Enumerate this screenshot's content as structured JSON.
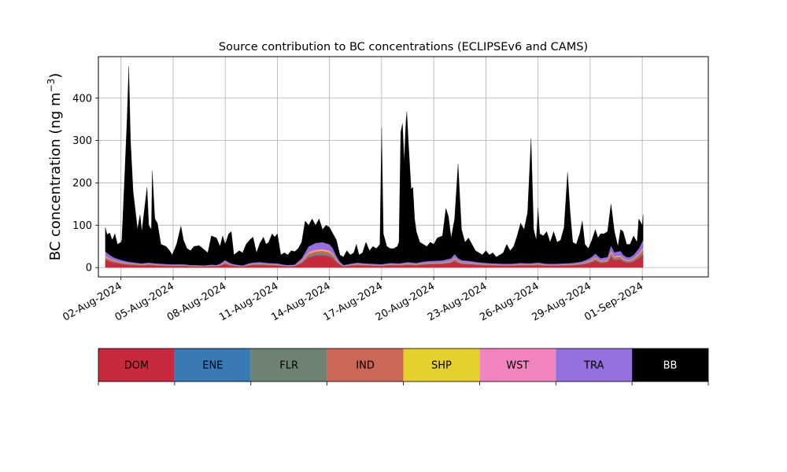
{
  "chart_data": {
    "type": "area",
    "stacked": true,
    "title": "Source contribution to BC concentrations (ECLIPSEv6 and CAMS)",
    "xlabel": "",
    "ylabel": "BC concentration (ng m",
    "ylabel_sup": "−3",
    "ylabel_close": ")",
    "ylim": [
      -22,
      498
    ],
    "yticks": [
      0,
      100,
      200,
      300,
      400
    ],
    "xlim_days": [
      -1.3,
      33.8
    ],
    "xtick_days": [
      0,
      3,
      6,
      9,
      12,
      15,
      18,
      21,
      24,
      27,
      30
    ],
    "xtick_labels": [
      "02-Aug-2024",
      "05-Aug-2024",
      "08-Aug-2024",
      "11-Aug-2024",
      "14-Aug-2024",
      "17-Aug-2024",
      "20-Aug-2024",
      "23-Aug-2024",
      "26-Aug-2024",
      "29-Aug-2024",
      "01-Sep-2024"
    ],
    "grid": true,
    "series": [
      {
        "name": "DOM",
        "color": "#c62a3c",
        "text_color": "#000000"
      },
      {
        "name": "ENE",
        "color": "#3a7ab4",
        "text_color": "#000000"
      },
      {
        "name": "FLR",
        "color": "#6e8271",
        "text_color": "#000000"
      },
      {
        "name": "IND",
        "color": "#cb6756",
        "text_color": "#000000"
      },
      {
        "name": "SHP",
        "color": "#e6d02f",
        "text_color": "#000000"
      },
      {
        "name": "WST",
        "color": "#f284bf",
        "text_color": "#000000"
      },
      {
        "name": "TRA",
        "color": "#9370db",
        "text_color": "#000000"
      },
      {
        "name": "BB",
        "color": "#000000",
        "text_color": "#ffffff"
      }
    ],
    "total_points": [
      [
        -0.9,
        95
      ],
      [
        -0.8,
        78
      ],
      [
        -0.65,
        82
      ],
      [
        -0.5,
        65
      ],
      [
        -0.35,
        80
      ],
      [
        -0.2,
        55
      ],
      [
        0.0,
        60
      ],
      [
        0.05,
        65
      ],
      [
        0.2,
        205
      ],
      [
        0.35,
        350
      ],
      [
        0.45,
        475
      ],
      [
        0.55,
        300
      ],
      [
        0.7,
        180
      ],
      [
        0.8,
        145
      ],
      [
        0.95,
        90
      ],
      [
        1.1,
        125
      ],
      [
        1.2,
        85
      ],
      [
        1.5,
        190
      ],
      [
        1.6,
        100
      ],
      [
        1.75,
        90
      ],
      [
        1.8,
        228
      ],
      [
        1.95,
        115
      ],
      [
        2.1,
        105
      ],
      [
        2.3,
        55
      ],
      [
        2.6,
        50
      ],
      [
        2.8,
        40
      ],
      [
        2.95,
        30
      ],
      [
        3.2,
        55
      ],
      [
        3.45,
        98
      ],
      [
        3.6,
        65
      ],
      [
        3.8,
        45
      ],
      [
        4.0,
        40
      ],
      [
        4.2,
        50
      ],
      [
        4.5,
        52
      ],
      [
        4.8,
        42
      ],
      [
        5.0,
        35
      ],
      [
        5.2,
        75
      ],
      [
        5.5,
        70
      ],
      [
        5.7,
        50
      ],
      [
        5.85,
        75
      ],
      [
        6.0,
        55
      ],
      [
        6.2,
        80
      ],
      [
        6.35,
        85
      ],
      [
        6.5,
        30
      ],
      [
        6.8,
        40
      ],
      [
        7.0,
        35
      ],
      [
        7.2,
        55
      ],
      [
        7.4,
        65
      ],
      [
        7.6,
        72
      ],
      [
        7.8,
        35
      ],
      [
        8.0,
        58
      ],
      [
        8.2,
        72
      ],
      [
        8.35,
        55
      ],
      [
        8.5,
        60
      ],
      [
        8.7,
        80
      ],
      [
        8.85,
        72
      ],
      [
        9.0,
        80
      ],
      [
        9.2,
        30
      ],
      [
        9.4,
        35
      ],
      [
        9.6,
        30
      ],
      [
        9.8,
        40
      ],
      [
        10.0,
        38
      ],
      [
        10.2,
        45
      ],
      [
        10.4,
        60
      ],
      [
        10.6,
        110
      ],
      [
        10.8,
        100
      ],
      [
        11.0,
        115
      ],
      [
        11.2,
        100
      ],
      [
        11.4,
        115
      ],
      [
        11.6,
        90
      ],
      [
        11.8,
        100
      ],
      [
        12.0,
        95
      ],
      [
        12.2,
        80
      ],
      [
        12.4,
        65
      ],
      [
        12.6,
        30
      ],
      [
        12.8,
        25
      ],
      [
        13.0,
        40
      ],
      [
        13.2,
        30
      ],
      [
        13.4,
        35
      ],
      [
        13.55,
        55
      ],
      [
        13.7,
        30
      ],
      [
        13.9,
        35
      ],
      [
        14.1,
        60
      ],
      [
        14.3,
        40
      ],
      [
        14.5,
        50
      ],
      [
        14.7,
        45
      ],
      [
        14.9,
        55
      ],
      [
        15.0,
        330
      ],
      [
        15.1,
        80
      ],
      [
        15.3,
        50
      ],
      [
        15.5,
        45
      ],
      [
        15.7,
        45
      ],
      [
        15.9,
        50
      ],
      [
        16.0,
        60
      ],
      [
        16.1,
        320
      ],
      [
        16.2,
        340
      ],
      [
        16.3,
        250
      ],
      [
        16.4,
        345
      ],
      [
        16.45,
        368
      ],
      [
        16.55,
        290
      ],
      [
        16.7,
        185
      ],
      [
        16.8,
        190
      ],
      [
        16.9,
        115
      ],
      [
        17.0,
        85
      ],
      [
        17.2,
        60
      ],
      [
        17.4,
        55
      ],
      [
        17.6,
        50
      ],
      [
        17.8,
        60
      ],
      [
        18.0,
        55
      ],
      [
        18.2,
        70
      ],
      [
        18.5,
        75
      ],
      [
        18.7,
        140
      ],
      [
        18.85,
        120
      ],
      [
        19.0,
        70
      ],
      [
        19.2,
        115
      ],
      [
        19.4,
        245
      ],
      [
        19.6,
        90
      ],
      [
        19.8,
        60
      ],
      [
        20.0,
        70
      ],
      [
        20.2,
        55
      ],
      [
        20.4,
        40
      ],
      [
        20.6,
        35
      ],
      [
        20.8,
        30
      ],
      [
        21.0,
        40
      ],
      [
        21.2,
        30
      ],
      [
        21.4,
        35
      ],
      [
        21.6,
        25
      ],
      [
        21.8,
        30
      ],
      [
        22.0,
        35
      ],
      [
        22.2,
        55
      ],
      [
        22.4,
        40
      ],
      [
        22.6,
        50
      ],
      [
        22.8,
        75
      ],
      [
        23.0,
        105
      ],
      [
        23.2,
        90
      ],
      [
        23.4,
        130
      ],
      [
        23.6,
        305
      ],
      [
        23.75,
        90
      ],
      [
        23.9,
        65
      ],
      [
        24.0,
        140
      ],
      [
        24.1,
        80
      ],
      [
        24.3,
        75
      ],
      [
        24.5,
        85
      ],
      [
        24.7,
        60
      ],
      [
        24.9,
        85
      ],
      [
        25.1,
        60
      ],
      [
        25.3,
        65
      ],
      [
        25.5,
        95
      ],
      [
        25.7,
        225
      ],
      [
        25.85,
        130
      ],
      [
        26.0,
        60
      ],
      [
        26.2,
        55
      ],
      [
        26.4,
        80
      ],
      [
        26.55,
        110
      ],
      [
        26.7,
        55
      ],
      [
        26.9,
        45
      ],
      [
        27.1,
        65
      ],
      [
        27.3,
        90
      ],
      [
        27.45,
        70
      ],
      [
        27.6,
        80
      ],
      [
        27.8,
        80
      ],
      [
        28.0,
        85
      ],
      [
        28.2,
        150
      ],
      [
        28.4,
        85
      ],
      [
        28.6,
        50
      ],
      [
        28.75,
        90
      ],
      [
        28.9,
        85
      ],
      [
        29.1,
        55
      ],
      [
        29.3,
        55
      ],
      [
        29.5,
        75
      ],
      [
        29.7,
        60
      ],
      [
        29.8,
        115
      ],
      [
        30.0,
        100
      ],
      [
        30.05,
        125
      ]
    ],
    "stack_points": [
      [
        -0.9,
        38
      ],
      [
        -0.6,
        28
      ],
      [
        -0.3,
        22
      ],
      [
        0.0,
        18
      ],
      [
        0.4,
        14
      ],
      [
        0.8,
        12
      ],
      [
        1.2,
        10
      ],
      [
        1.6,
        12
      ],
      [
        2.0,
        10
      ],
      [
        2.4,
        9
      ],
      [
        2.8,
        8
      ],
      [
        3.2,
        8
      ],
      [
        3.6,
        8
      ],
      [
        4.0,
        6
      ],
      [
        4.4,
        6
      ],
      [
        4.8,
        5
      ],
      [
        5.2,
        7
      ],
      [
        5.6,
        6
      ],
      [
        6.0,
        18
      ],
      [
        6.3,
        10
      ],
      [
        6.6,
        7
      ],
      [
        7.0,
        5
      ],
      [
        7.5,
        12
      ],
      [
        8.0,
        13
      ],
      [
        8.5,
        11
      ],
      [
        9.0,
        10
      ],
      [
        9.5,
        6
      ],
      [
        10.0,
        7
      ],
      [
        10.4,
        22
      ],
      [
        10.8,
        50
      ],
      [
        11.2,
        58
      ],
      [
        11.6,
        60
      ],
      [
        12.0,
        55
      ],
      [
        12.2,
        45
      ],
      [
        12.5,
        18
      ],
      [
        12.8,
        6
      ],
      [
        13.2,
        9
      ],
      [
        13.6,
        12
      ],
      [
        14.0,
        10
      ],
      [
        14.5,
        9
      ],
      [
        15.0,
        8
      ],
      [
        15.5,
        11
      ],
      [
        16.0,
        10
      ],
      [
        16.5,
        13
      ],
      [
        17.0,
        11
      ],
      [
        17.5,
        15
      ],
      [
        18.0,
        16
      ],
      [
        18.5,
        17
      ],
      [
        19.0,
        22
      ],
      [
        19.2,
        32
      ],
      [
        19.5,
        18
      ],
      [
        20.0,
        16
      ],
      [
        20.5,
        13
      ],
      [
        21.0,
        11
      ],
      [
        21.5,
        10
      ],
      [
        22.0,
        9
      ],
      [
        22.5,
        9
      ],
      [
        23.0,
        11
      ],
      [
        23.5,
        10
      ],
      [
        24.0,
        12
      ],
      [
        24.5,
        9
      ],
      [
        25.0,
        9
      ],
      [
        25.5,
        10
      ],
      [
        26.0,
        11
      ],
      [
        26.5,
        14
      ],
      [
        27.0,
        22
      ],
      [
        27.3,
        33
      ],
      [
        27.6,
        22
      ],
      [
        28.0,
        25
      ],
      [
        28.2,
        52
      ],
      [
        28.45,
        32
      ],
      [
        28.7,
        42
      ],
      [
        28.9,
        30
      ],
      [
        29.2,
        22
      ],
      [
        29.5,
        30
      ],
      [
        29.8,
        45
      ],
      [
        30.05,
        65
      ]
    ]
  }
}
